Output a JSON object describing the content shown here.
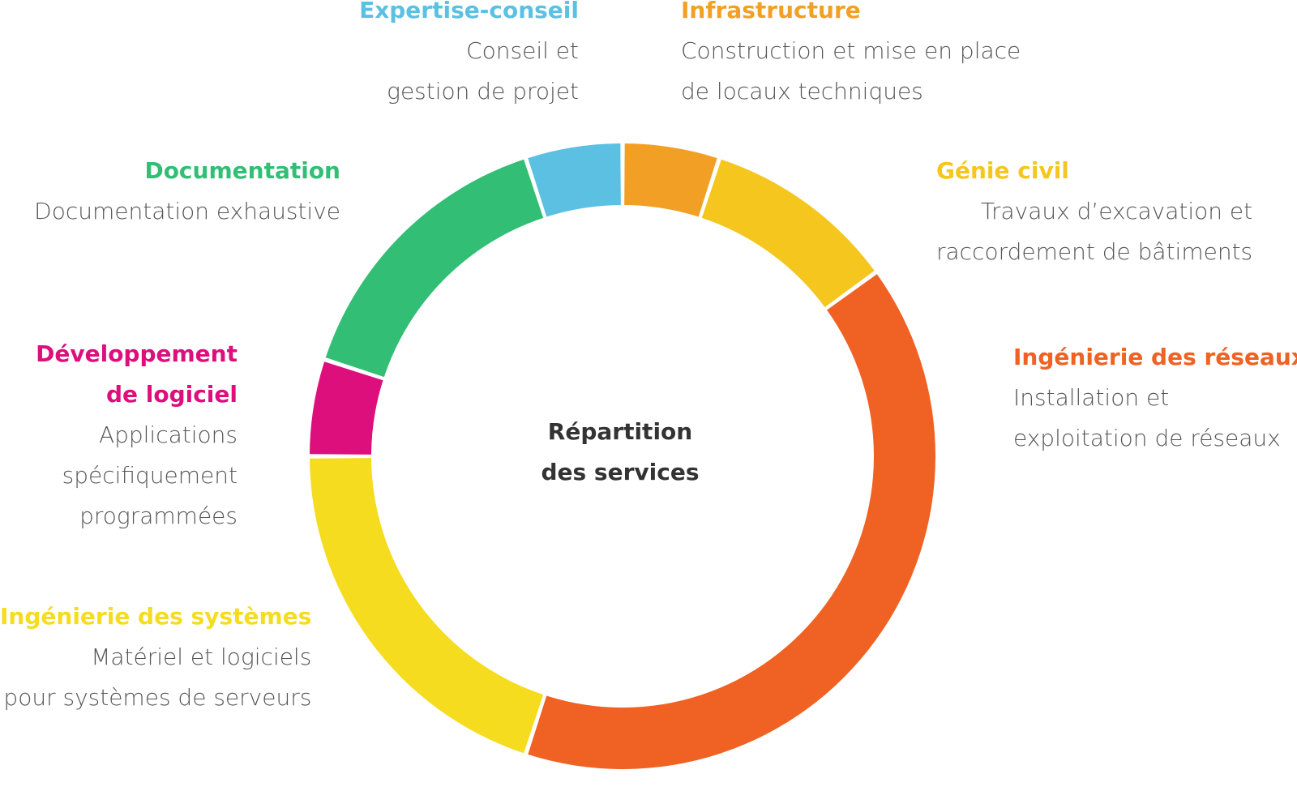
{
  "center_label": [
    "Répartition",
    "des services"
  ],
  "segment_colors": {
    "expertise": "#5BC0E1",
    "infrastructure": "#F2A025",
    "genie": "#F5C61E",
    "reseaux": "#F06223",
    "systemes": "#F6DC1F",
    "developpement": "#DC0F7D",
    "documentation": "#32BE74"
  },
  "labels": {
    "expertise": {
      "title": "Expertise-conseil",
      "lines": [
        "Conseil et",
        "gestion de projet"
      ]
    },
    "infrastructure": {
      "title": "Infrastructure",
      "lines": [
        "Construction et mise en place",
        "de locaux techniques"
      ]
    },
    "documentation": {
      "title": "Documentation",
      "lines": [
        "Documentation exhaustive"
      ]
    },
    "genie": {
      "title": "Génie civil",
      "lines": [
        "Travaux d’excavation et",
        "raccordement de bâtiments"
      ]
    },
    "developpement": {
      "title": [
        "Développement",
        "de logiciel"
      ],
      "lines": [
        "Applications",
        "spécifiquement",
        "programmées"
      ]
    },
    "reseaux": {
      "title": "Ingénierie des réseaux",
      "lines": [
        "Installation et",
        "exploitation de réseaux"
      ]
    },
    "systemes": {
      "title": "Ingénierie des systèmes",
      "lines": [
        "Matériel et logiciels",
        "pour systèmes de serveurs"
      ]
    }
  },
  "chart_data": {
    "type": "pie",
    "style": "donut",
    "title": "",
    "center_text": "Répartition des services",
    "order": "clockwise from top",
    "slices": [
      {
        "name": "Infrastructure",
        "value": 5,
        "color": "#F2A025"
      },
      {
        "name": "Génie civil",
        "value": 10,
        "color": "#F5C61E"
      },
      {
        "name": "Ingénierie des réseaux",
        "value": 40,
        "color": "#F06223"
      },
      {
        "name": "Ingénierie des systèmes",
        "value": 20,
        "color": "#F6DC1F"
      },
      {
        "name": "Développement de logiciel",
        "value": 5,
        "color": "#DC0F7D"
      },
      {
        "name": "Documentation",
        "value": 15,
        "color": "#32BE74"
      },
      {
        "name": "Expertise-conseil",
        "value": 5,
        "color": "#5BC0E1"
      }
    ]
  }
}
